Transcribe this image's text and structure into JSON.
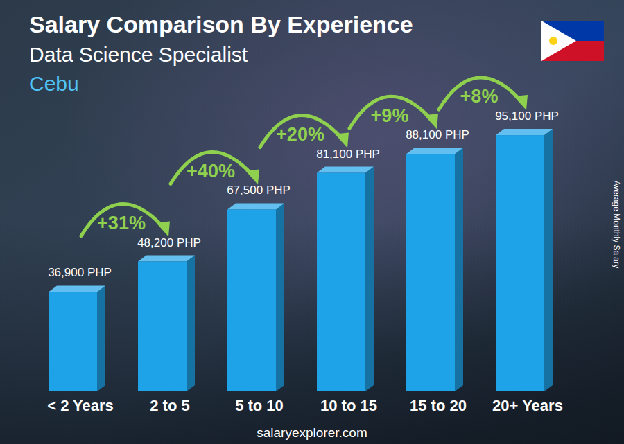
{
  "chart_data": {
    "type": "bar",
    "title": "Salary Comparison By Experience",
    "subtitle": "Data Science Specialist",
    "location": "Cebu",
    "categories": [
      "< 2 Years",
      "2 to 5",
      "5 to 10",
      "10 to 15",
      "15 to 20",
      "20+ Years"
    ],
    "values": [
      36900,
      48200,
      67500,
      81100,
      88100,
      95100
    ],
    "value_labels": [
      "36,900 PHP",
      "48,200 PHP",
      "67,500 PHP",
      "81,100 PHP",
      "88,100 PHP",
      "95,100 PHP"
    ],
    "annotations": [
      "+31%",
      "+40%",
      "+20%",
      "+9%",
      "+8%"
    ],
    "ylabel": "Average Monthly Salary",
    "source": "salaryexplorer.com",
    "color": "#1fa3e8",
    "ylim": [
      0,
      100000
    ],
    "grid": false,
    "data_labels": true,
    "tick_labels": "x"
  }
}
